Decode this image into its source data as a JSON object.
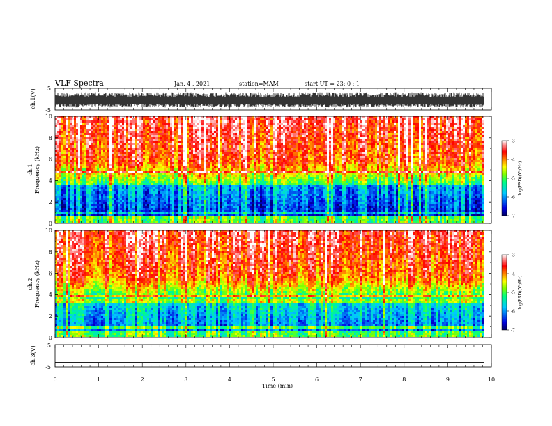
{
  "header": {
    "title": "VLF Spectra",
    "date": "Jan. 4 , 2021",
    "station": "station=MAM",
    "start": "start UT =  23: 0 : 1"
  },
  "chart_data": [
    {
      "type": "line",
      "name": "ch1-waveform",
      "ylabel": "ch.1(V)",
      "ylim": [
        -5,
        5
      ],
      "yticks": [
        "5",
        "-5"
      ],
      "xlim": [
        0,
        10
      ],
      "description_hidden": "",
      "x_end": 9.83,
      "amplitude_range": [
        -3.8,
        3.2
      ]
    },
    {
      "type": "heatmap",
      "name": "ch1-spectrogram",
      "ylabel": "ch.1\nFrequency (kHz)",
      "ylabel_line1": "ch.1",
      "ylabel_line2": "Frequency (kHz)",
      "ylim": [
        0,
        10
      ],
      "yticks": [
        "0",
        "2",
        "4",
        "6",
        "8",
        "10"
      ],
      "xlim": [
        0,
        10
      ],
      "x_end": 9.83,
      "colorbar": {
        "label": "log(PSD)(V²/Hz)",
        "range": [
          -7,
          -3
        ],
        "ticks": [
          "-3",
          "-4",
          "-5",
          "-6",
          "-7"
        ],
        "colors": [
          "#000080",
          "#0000ff",
          "#00ffff",
          "#00ff00",
          "#ffff00",
          "#ff8000",
          "#ff0000",
          "#ffffff"
        ]
      }
    },
    {
      "type": "heatmap",
      "name": "ch2-spectrogram",
      "ylabel_line1": "ch.2",
      "ylabel_line2": "Frequency (kHz)",
      "ylim": [
        0,
        10
      ],
      "yticks": [
        "0",
        "2",
        "4",
        "6",
        "8",
        "10"
      ],
      "xlim": [
        0,
        10
      ],
      "x_end": 9.83,
      "colorbar": {
        "label": "log(PSD)(V²/Hz)",
        "range": [
          -7,
          -3
        ],
        "ticks": [
          "-3",
          "-4",
          "-5",
          "-6",
          "-7"
        ]
      }
    },
    {
      "type": "line",
      "name": "ch3-waveform",
      "ylabel": "ch.3(V)",
      "ylim": [
        -5,
        5
      ],
      "yticks": [
        "5",
        "-5"
      ],
      "xlim": [
        0,
        10
      ],
      "x_end": 9.83,
      "level": -3
    }
  ],
  "xaxis": {
    "label": "Time (min)",
    "ticks": [
      "0",
      "1",
      "2",
      "3",
      "4",
      "5",
      "6",
      "7",
      "8",
      "9",
      "10"
    ]
  }
}
